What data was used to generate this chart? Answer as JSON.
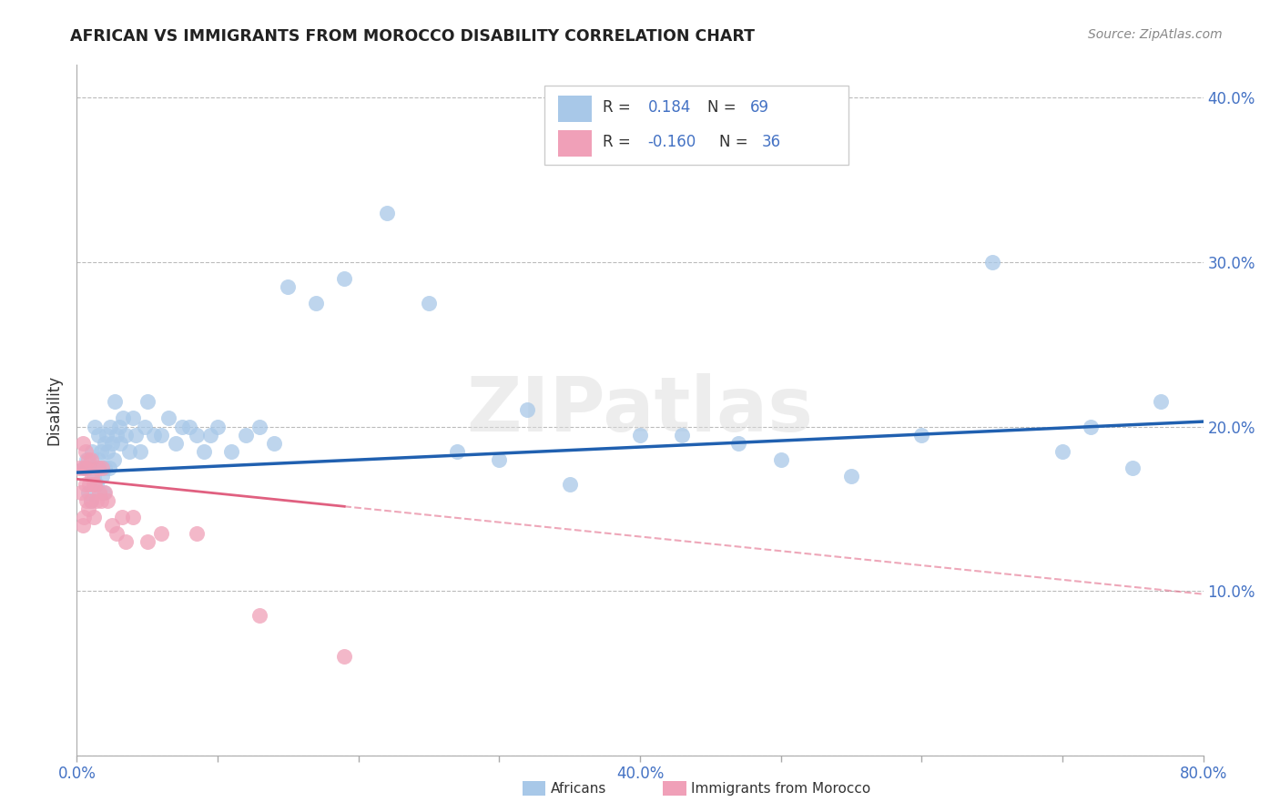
{
  "title": "AFRICAN VS IMMIGRANTS FROM MOROCCO DISABILITY CORRELATION CHART",
  "source": "Source: ZipAtlas.com",
  "ylabel": "Disability",
  "xlim": [
    0.0,
    0.8
  ],
  "ylim": [
    0.0,
    0.42
  ],
  "blue_color": "#A8C8E8",
  "pink_color": "#F0A0B8",
  "blue_line_color": "#2060B0",
  "pink_line_color": "#E06080",
  "watermark": "ZIPatlas",
  "africans_x": [
    0.005,
    0.007,
    0.008,
    0.01,
    0.01,
    0.011,
    0.012,
    0.013,
    0.014,
    0.015,
    0.015,
    0.016,
    0.017,
    0.018,
    0.019,
    0.02,
    0.02,
    0.021,
    0.022,
    0.023,
    0.024,
    0.025,
    0.026,
    0.027,
    0.028,
    0.03,
    0.031,
    0.033,
    0.035,
    0.037,
    0.04,
    0.042,
    0.045,
    0.048,
    0.05,
    0.055,
    0.06,
    0.065,
    0.07,
    0.075,
    0.08,
    0.085,
    0.09,
    0.095,
    0.1,
    0.11,
    0.12,
    0.13,
    0.14,
    0.15,
    0.17,
    0.19,
    0.22,
    0.25,
    0.27,
    0.3,
    0.32,
    0.35,
    0.4,
    0.43,
    0.47,
    0.5,
    0.55,
    0.6,
    0.65,
    0.7,
    0.72,
    0.75,
    0.77
  ],
  "africans_y": [
    0.175,
    0.18,
    0.16,
    0.175,
    0.155,
    0.185,
    0.17,
    0.2,
    0.165,
    0.18,
    0.195,
    0.175,
    0.185,
    0.17,
    0.16,
    0.19,
    0.175,
    0.195,
    0.185,
    0.175,
    0.2,
    0.19,
    0.18,
    0.215,
    0.195,
    0.2,
    0.19,
    0.205,
    0.195,
    0.185,
    0.205,
    0.195,
    0.185,
    0.2,
    0.215,
    0.195,
    0.195,
    0.205,
    0.19,
    0.2,
    0.2,
    0.195,
    0.185,
    0.195,
    0.2,
    0.185,
    0.195,
    0.2,
    0.19,
    0.285,
    0.275,
    0.29,
    0.33,
    0.275,
    0.185,
    0.18,
    0.21,
    0.165,
    0.195,
    0.195,
    0.19,
    0.18,
    0.17,
    0.195,
    0.3,
    0.185,
    0.2,
    0.175,
    0.215
  ],
  "morocco_x": [
    0.002,
    0.003,
    0.004,
    0.004,
    0.005,
    0.005,
    0.006,
    0.006,
    0.007,
    0.007,
    0.008,
    0.008,
    0.009,
    0.01,
    0.01,
    0.011,
    0.012,
    0.012,
    0.013,
    0.014,
    0.015,
    0.016,
    0.017,
    0.018,
    0.02,
    0.022,
    0.025,
    0.028,
    0.032,
    0.035,
    0.04,
    0.05,
    0.06,
    0.085,
    0.13,
    0.19
  ],
  "morocco_y": [
    0.175,
    0.16,
    0.19,
    0.14,
    0.175,
    0.145,
    0.185,
    0.165,
    0.175,
    0.155,
    0.18,
    0.15,
    0.165,
    0.18,
    0.155,
    0.17,
    0.165,
    0.145,
    0.165,
    0.155,
    0.175,
    0.16,
    0.155,
    0.175,
    0.16,
    0.155,
    0.14,
    0.135,
    0.145,
    0.13,
    0.145,
    0.13,
    0.135,
    0.135,
    0.085,
    0.06
  ],
  "blue_line_x0": 0.0,
  "blue_line_y0": 0.172,
  "blue_line_x1": 0.8,
  "blue_line_y1": 0.203,
  "pink_line_x0": 0.0,
  "pink_line_y0": 0.168,
  "pink_line_x1": 0.8,
  "pink_line_y1": 0.098
}
